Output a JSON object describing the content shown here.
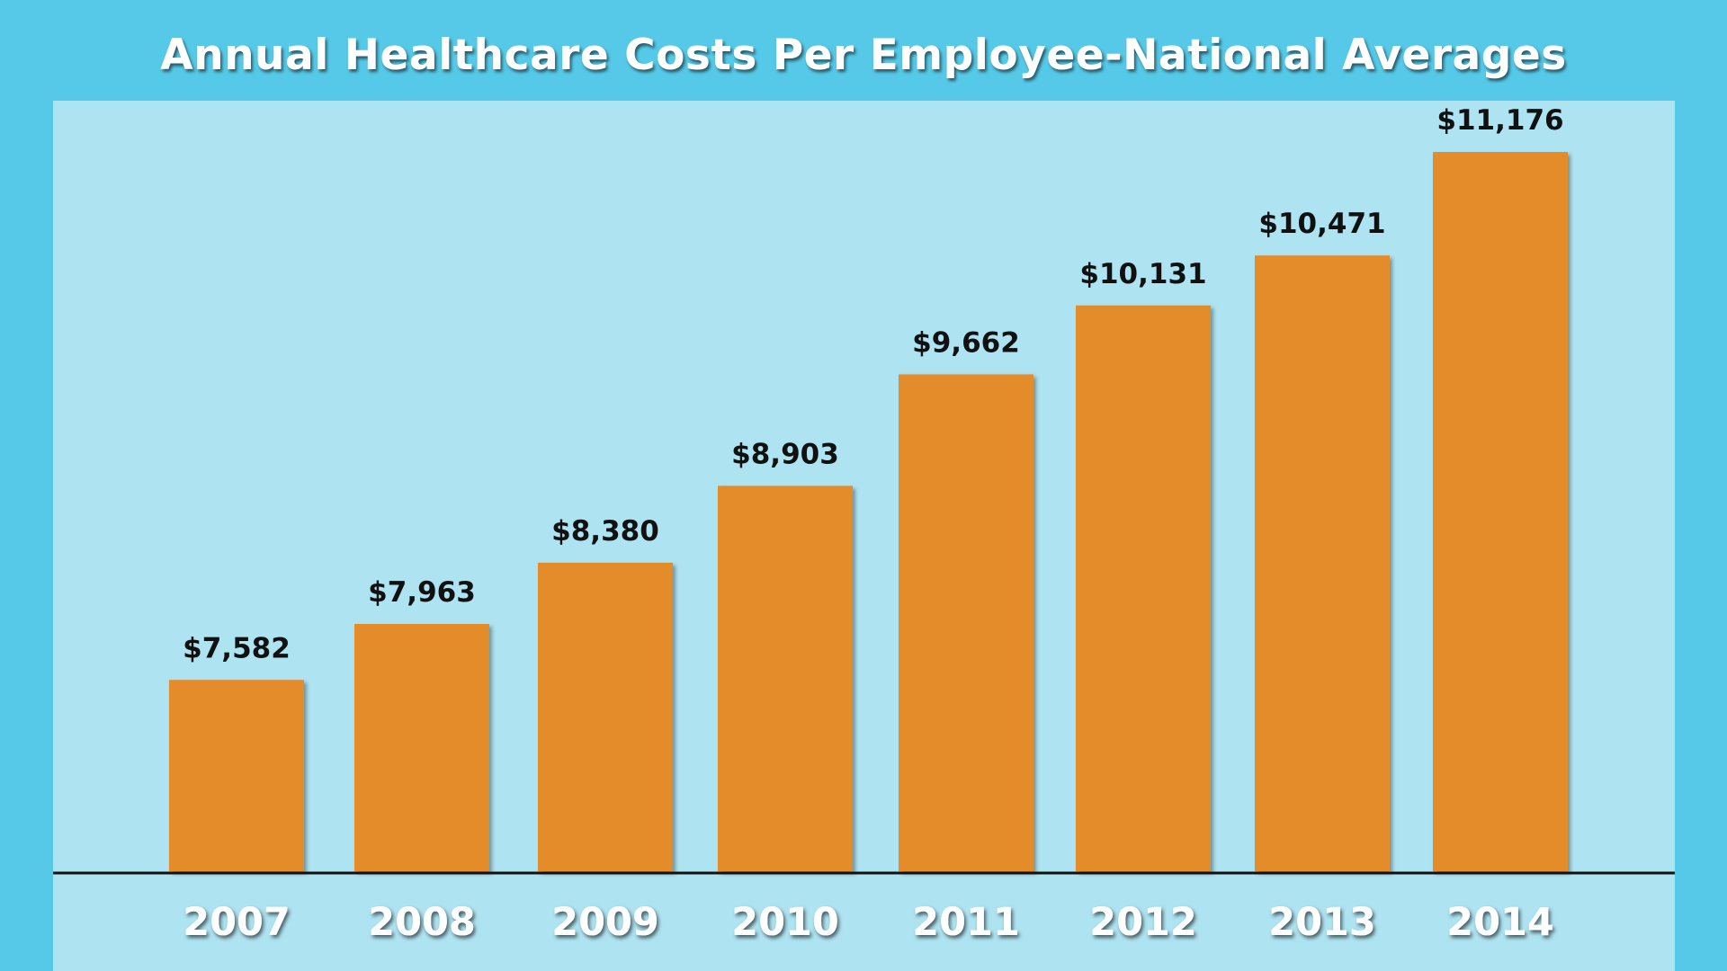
{
  "chart_data": {
    "type": "bar",
    "title": "Annual Healthcare Costs Per Employee-National Averages",
    "categories": [
      "2007",
      "2008",
      "2009",
      "2010",
      "2011",
      "2012",
      "2013",
      "2014"
    ],
    "values": [
      7582,
      7963,
      8380,
      8903,
      9662,
      10131,
      10471,
      11176
    ],
    "data_labels": [
      "$7,582",
      "$7,963",
      "$8,380",
      "$8,903",
      "$9,662",
      "$10,131",
      "$10,471",
      "$11,176"
    ],
    "xlabel": "",
    "ylabel": "",
    "grid": false,
    "legend": "none",
    "colors": {
      "background": "#56c9e8",
      "plot_area": "#aee3f1",
      "bar": "#e48b2b",
      "title": "#ffffff",
      "category_label": "#ffffff",
      "value_label": "#111111"
    }
  }
}
